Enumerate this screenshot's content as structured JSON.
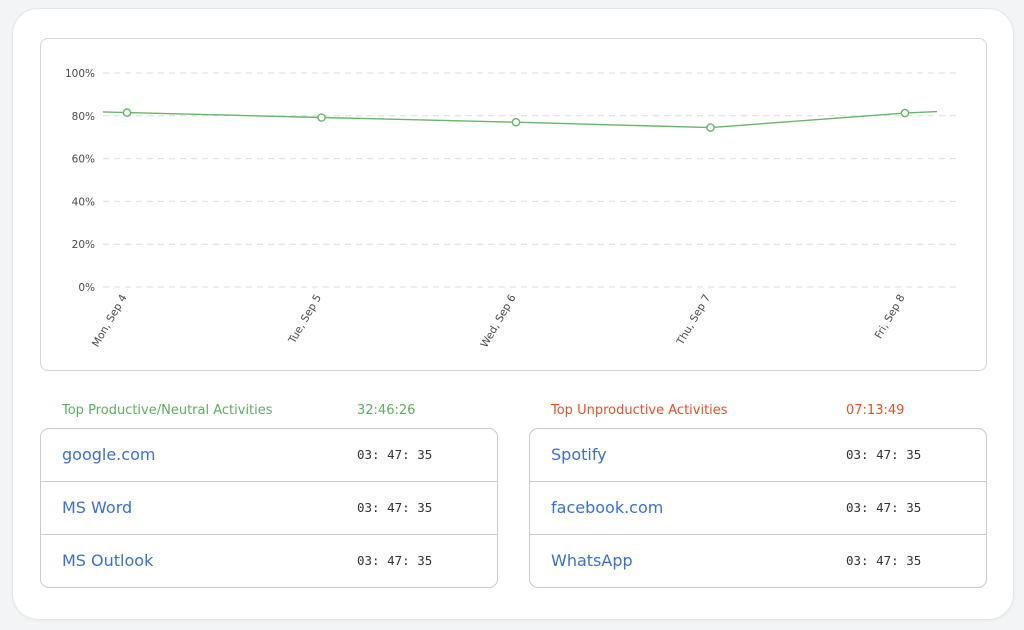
{
  "chart_data": {
    "type": "line",
    "categories": [
      "Mon, Sep 4",
      "Tue, Sep 5",
      "Wed, Sep 6",
      "Thu, Sep 7",
      "Fri, Sep 8"
    ],
    "series": [
      {
        "values": [
          81.5,
          79.2,
          77,
          74.5,
          81.3
        ]
      }
    ],
    "y_tick_labels": [
      "0%",
      "20%",
      "40%",
      "60%",
      "80%",
      "100%"
    ],
    "ylim": [
      0,
      100
    ],
    "grid": true,
    "color": "#6ab46a"
  },
  "productive": {
    "title": "Top Productive/Neutral Activities",
    "total": "32:46:26",
    "color": "#5fae5f",
    "items": [
      {
        "name": "google.com",
        "time": "03: 47: 35"
      },
      {
        "name": "MS Word",
        "time": "03: 47: 35"
      },
      {
        "name": "MS Outlook",
        "time": "03: 47: 35"
      }
    ]
  },
  "unproductive": {
    "title": "Top Unproductive Activities",
    "total": "07:13:49",
    "color": "#e8502a",
    "items": [
      {
        "name": "Spotify",
        "time": "03: 47: 35"
      },
      {
        "name": "facebook.com",
        "time": "03: 47: 35"
      },
      {
        "name": "WhatsApp",
        "time": "03: 47: 35"
      }
    ]
  }
}
